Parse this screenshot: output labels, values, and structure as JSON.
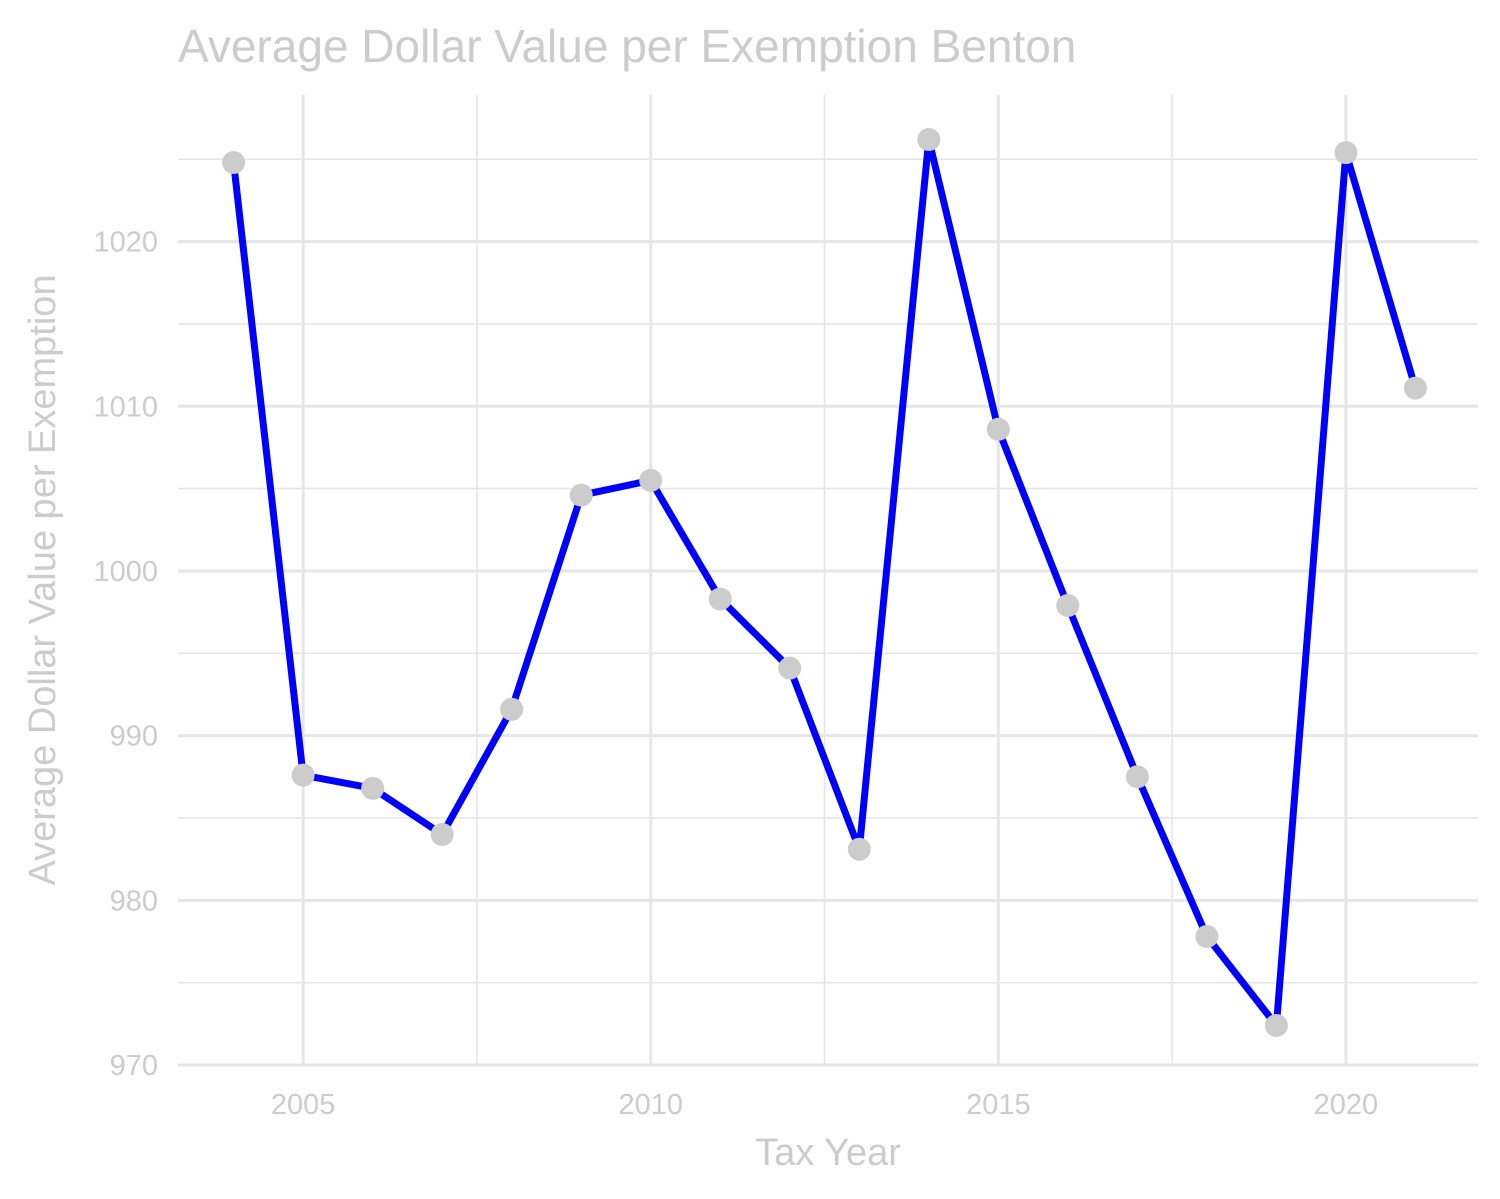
{
  "chart_data": {
    "type": "line",
    "title": "Average Dollar Value per Exemption Benton",
    "xlabel": "Tax Year",
    "ylabel": "Average Dollar Value per Exemption",
    "x": [
      2004,
      2005,
      2006,
      2007,
      2008,
      2009,
      2010,
      2011,
      2012,
      2013,
      2014,
      2015,
      2016,
      2017,
      2018,
      2019,
      2020,
      2021
    ],
    "series": [
      {
        "values": [
          1024.8,
          987.6,
          986.8,
          984.0,
          991.6,
          1004.6,
          1005.5,
          998.3,
          994.1,
          983.1,
          1026.2,
          1008.6,
          997.9,
          987.5,
          977.8,
          972.4,
          1025.4,
          1011.1
        ]
      }
    ],
    "xlim": [
      2003.2,
      2021.9
    ],
    "ylim": [
      970,
      1028.9
    ],
    "xticks": [
      2005,
      2010,
      2015,
      2020
    ],
    "yticks": [
      970,
      980,
      990,
      1000,
      1010,
      1020
    ],
    "grid": true,
    "legend": "none",
    "colors": {
      "line": "#0000ff",
      "points": "#cccccc",
      "grid": "#e6e6e6",
      "text": "#cccccc"
    }
  }
}
